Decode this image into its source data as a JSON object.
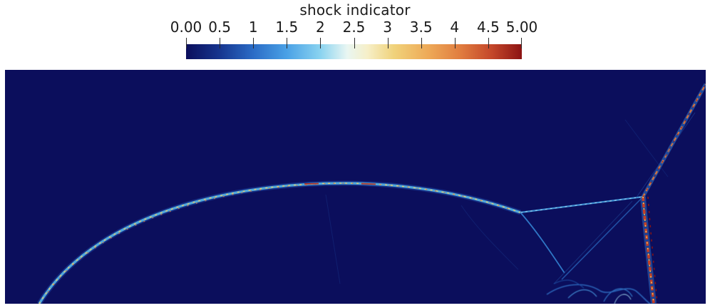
{
  "colorbar": {
    "title": "shock indicator",
    "ticks": [
      {
        "label": "0.00",
        "value": 0.0
      },
      {
        "label": "0.5",
        "value": 0.5
      },
      {
        "label": "1",
        "value": 1.0
      },
      {
        "label": "1.5",
        "value": 1.5
      },
      {
        "label": "2",
        "value": 2.0
      },
      {
        "label": "2.5",
        "value": 2.5
      },
      {
        "label": "3",
        "value": 3.0
      },
      {
        "label": "3.5",
        "value": 3.5
      },
      {
        "label": "4",
        "value": 4.0
      },
      {
        "label": "4.5",
        "value": 4.5
      },
      {
        "label": "5.00",
        "value": 5.0
      }
    ],
    "range": [
      0.0,
      5.0
    ],
    "colormap": [
      "#0b0e5c",
      "#2b6cc6",
      "#8ad3f0",
      "#e9f6f2",
      "#f0d27a",
      "#e07b3e",
      "#8c1313"
    ]
  },
  "field": {
    "background_color": "#0b0e5c"
  }
}
